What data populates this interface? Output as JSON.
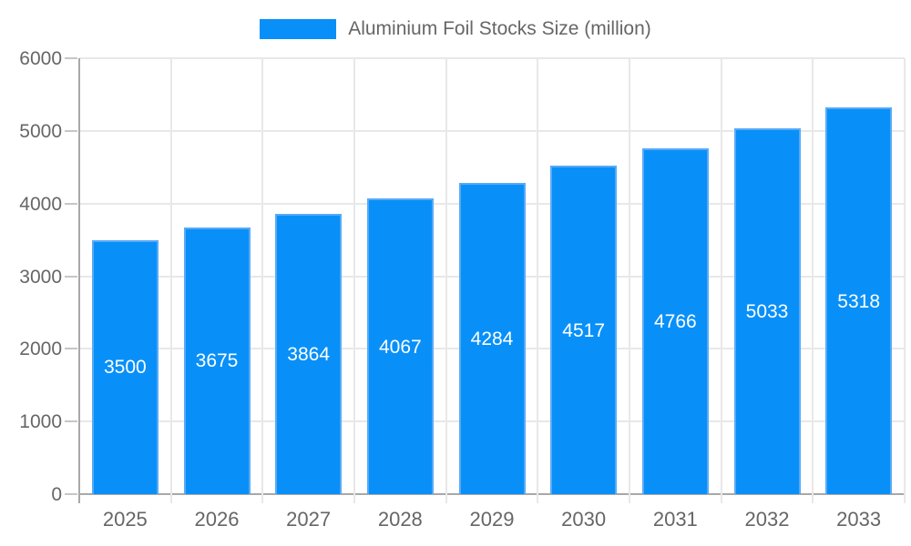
{
  "chart_data": {
    "type": "bar",
    "title": "",
    "legend_label": "Aluminium Foil Stocks Size (million)",
    "legend_position": "top",
    "categories": [
      "2025",
      "2026",
      "2027",
      "2028",
      "2029",
      "2030",
      "2031",
      "2032",
      "2033"
    ],
    "series": [
      {
        "name": "Aluminium Foil Stocks Size (million)",
        "values": [
          3500,
          3675,
          3864,
          4067,
          4284,
          4517,
          4766,
          5033,
          5318
        ]
      }
    ],
    "xlabel": "",
    "ylabel": "",
    "ylim": [
      0,
      6000
    ],
    "yticks": [
      0,
      1000,
      2000,
      3000,
      4000,
      5000,
      6000
    ],
    "grid": true,
    "value_labels": "white text centered inside each bar"
  },
  "colors": {
    "bar_fill": "#0890f8",
    "bar_border": "#58aaf6",
    "gridline": "#e8e8e8",
    "axis_line": "#a8a8a8",
    "tick": "#c6c6c6",
    "axis_text": "#666666",
    "value_text": "#ffffff",
    "background": "#ffffff"
  }
}
